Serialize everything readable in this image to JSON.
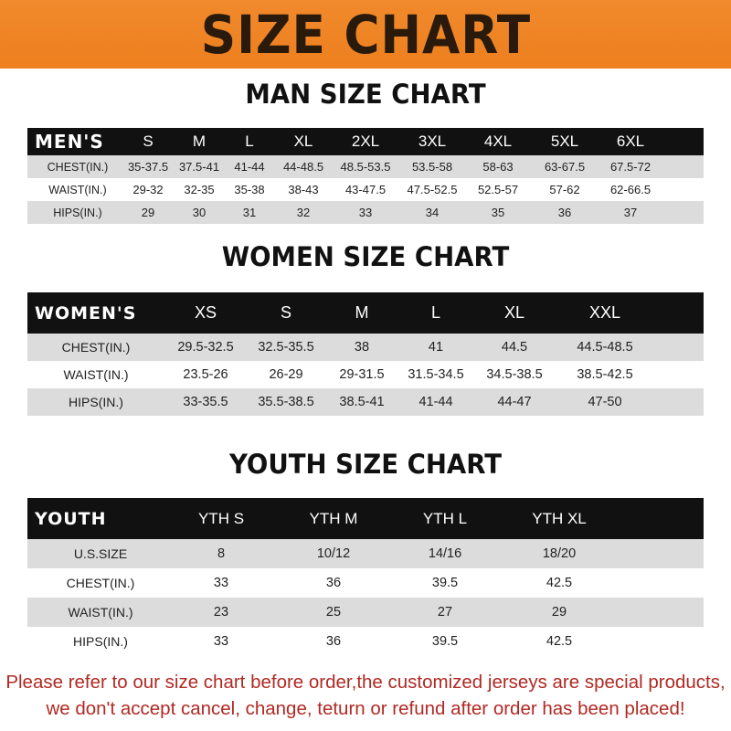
{
  "banner": {
    "title": "SIZE CHART",
    "color": "#ef842a"
  },
  "men": {
    "title": "MAN SIZE CHART",
    "header": [
      "MEN'S",
      "S",
      "M",
      "L",
      "XL",
      "2XL",
      "3XL",
      "4XL",
      "5XL",
      "6XL"
    ],
    "rows": [
      [
        "CHEST(IN.)",
        "35-37.5",
        "37.5-41",
        "41-44",
        "44-48.5",
        "48.5-53.5",
        "53.5-58",
        "58-63",
        "63-67.5",
        "67.5-72"
      ],
      [
        "WAIST(IN.)",
        "29-32",
        "32-35",
        "35-38",
        "38-43",
        "43-47.5",
        "47.5-52.5",
        "52.5-57",
        "57-62",
        "62-66.5"
      ],
      [
        "HIPS(IN.)",
        "29",
        "30",
        "31",
        "32",
        "33",
        "34",
        "35",
        "36",
        "37"
      ]
    ]
  },
  "women": {
    "title": "WOMEN SIZE CHART",
    "header": [
      "WOMEN'S",
      "XS",
      "S",
      "M",
      "L",
      "XL",
      "XXL"
    ],
    "rows": [
      [
        "CHEST(IN.)",
        "29.5-32.5",
        "32.5-35.5",
        "38",
        "41",
        "44.5",
        "44.5-48.5"
      ],
      [
        "WAIST(IN.)",
        "23.5-26",
        "26-29",
        "29-31.5",
        "31.5-34.5",
        "34.5-38.5",
        "38.5-42.5"
      ],
      [
        "HIPS(IN.)",
        "33-35.5",
        "35.5-38.5",
        "38.5-41",
        "41-44",
        "44-47",
        "47-50"
      ]
    ]
  },
  "youth": {
    "title": "YOUTH SIZE CHART",
    "header": [
      "YOUTH",
      "YTH S",
      "YTH M",
      "YTH L",
      "YTH XL"
    ],
    "rows": [
      [
        "U.S.SIZE",
        "8",
        "10/12",
        "14/16",
        "18/20"
      ],
      [
        "CHEST(IN.)",
        "33",
        "36",
        "39.5",
        "42.5"
      ],
      [
        "WAIST(IN.)",
        "23",
        "25",
        "27",
        "29"
      ],
      [
        "HIPS(IN.)",
        "33",
        "36",
        "39.5",
        "42.5"
      ]
    ]
  },
  "footer": {
    "line1": "Please refer to our size chart before order,the customized jerseys are special products,",
    "line2": "we don't accept cancel, change, teturn or refund after order has been placed!",
    "color": "#b02a24"
  }
}
